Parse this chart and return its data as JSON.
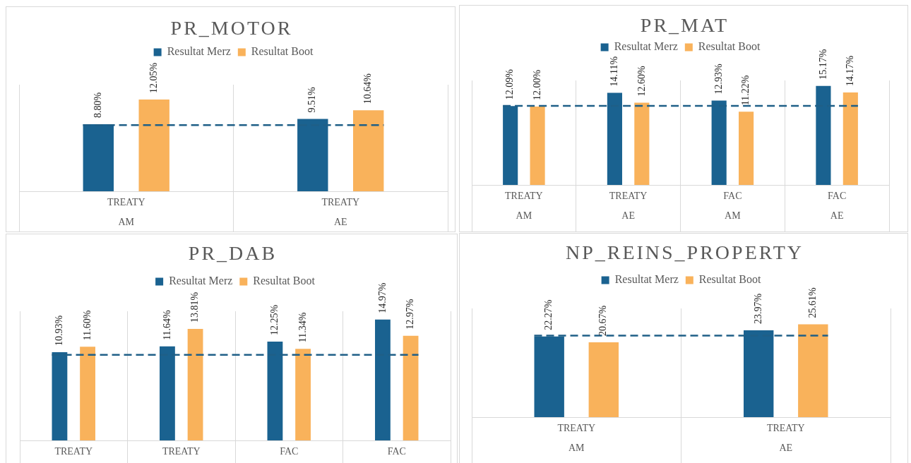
{
  "chart_data": [
    {
      "type": "bar",
      "title": "PR_MOTOR",
      "categories": [
        "TREATY\nAM",
        "TREATY\nAE"
      ],
      "series": [
        {
          "name": "Resultat Merz",
          "color": "#1a6290",
          "values": [
            8.8,
            9.51
          ],
          "value_labels": [
            "8.80%",
            "9.51%"
          ]
        },
        {
          "name": "Resultat Boot",
          "color": "#f9b25b",
          "values": [
            12.05,
            10.64
          ],
          "value_labels": [
            "12.05%",
            "10.64%"
          ]
        }
      ],
      "ylim": [
        0,
        14
      ],
      "tick_labels": "x",
      "grid": "x",
      "legend": "top",
      "ref_lines": [
        {
          "axis": "y",
          "value": 8.7,
          "color": "#1f5f87",
          "line_style": "dashed"
        }
      ]
    },
    {
      "type": "bar",
      "title": "PR_MAT",
      "categories": [
        "TREATY\nAM",
        "TREATY\nAE",
        "FAC\nAM",
        "FAC\nAE"
      ],
      "series": [
        {
          "name": "Resultat Merz",
          "color": "#1a6290",
          "values": [
            12.09,
            14.11,
            12.93,
            15.17
          ],
          "value_labels": [
            "12.09%",
            "14.11%",
            "12.93%",
            "15.17%"
          ]
        },
        {
          "name": "Resultat Boot",
          "color": "#f9b25b",
          "values": [
            12.0,
            12.6,
            11.22,
            14.17
          ],
          "value_labels": [
            "12.00%",
            "12.60%",
            "11.22%",
            "14.17%"
          ]
        }
      ],
      "ylim": [
        0,
        16
      ],
      "tick_labels": "x",
      "grid": "x",
      "legend": "top",
      "ref_lines": [
        {
          "axis": "y",
          "value": 12.1,
          "color": "#1f5f87",
          "line_style": "dashed"
        }
      ]
    },
    {
      "type": "bar",
      "title": "PR_DAB",
      "categories": [
        "TREATY",
        "TREATY",
        "FAC",
        "FAC"
      ],
      "series": [
        {
          "name": "Resultat Merz",
          "color": "#1a6290",
          "values": [
            10.93,
            11.64,
            12.25,
            14.97
          ],
          "value_labels": [
            "10.93%",
            "11.64%",
            "12.25%",
            "14.97%"
          ]
        },
        {
          "name": "Resultat Boot",
          "color": "#f9b25b",
          "values": [
            11.6,
            13.81,
            11.34,
            12.97
          ],
          "value_labels": [
            "11.60%",
            "13.81%",
            "11.34%",
            "12.97%"
          ]
        }
      ],
      "ylim": [
        0,
        16
      ],
      "tick_labels": "x",
      "grid": "x",
      "legend": "top",
      "ref_lines": [
        {
          "axis": "y",
          "value": 10.6,
          "color": "#1f5f87",
          "line_style": "dashed"
        }
      ]
    },
    {
      "type": "bar",
      "title": "NP_REINS_PROPERTY",
      "categories": [
        "TREATY\nAM",
        "TREATY\nAE"
      ],
      "series": [
        {
          "name": "Resultat Merz",
          "color": "#1a6290",
          "values": [
            22.27,
            23.97
          ],
          "value_labels": [
            "22.27%",
            "23.97%"
          ]
        },
        {
          "name": "Resultat Boot",
          "color": "#f9b25b",
          "values": [
            20.67,
            25.61
          ],
          "value_labels": [
            "20.67%",
            "25.61%"
          ]
        }
      ],
      "ylim": [
        0,
        30
      ],
      "tick_labels": "x",
      "grid": "x",
      "legend": "top",
      "ref_lines": [
        {
          "axis": "y",
          "value": 22.5,
          "color": "#1f5f87",
          "line_style": "dashed"
        }
      ]
    }
  ]
}
